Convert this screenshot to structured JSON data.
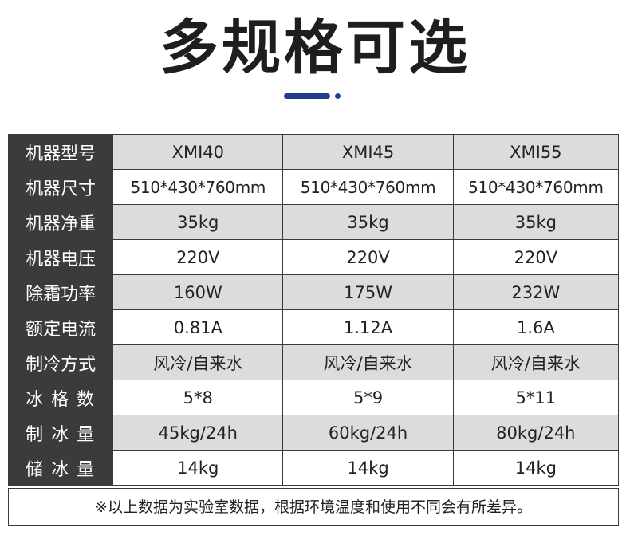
{
  "page": {
    "title": "多规格可选",
    "accent_color": "#1f3f8f"
  },
  "table": {
    "rows": [
      {
        "label": "机器型号",
        "values": [
          "XMI40",
          "XMI45",
          "XMI55"
        ]
      },
      {
        "label": "机器尺寸",
        "values": [
          "510*430*760mm",
          "510*430*760mm",
          "510*430*760mm"
        ]
      },
      {
        "label": "机器净重",
        "values": [
          "35kg",
          "35kg",
          "35kg"
        ]
      },
      {
        "label": "机器电压",
        "values": [
          "220V",
          "220V",
          "220V"
        ]
      },
      {
        "label": "除霜功率",
        "values": [
          "160W",
          "175W",
          "232W"
        ]
      },
      {
        "label": "额定电流",
        "values": [
          "0.81A",
          "1.12A",
          "1.6A"
        ]
      },
      {
        "label": "制冷方式",
        "values": [
          "风冷/自来水",
          "风冷/自来水",
          "风冷/自来水"
        ]
      },
      {
        "label": "冰格数",
        "values": [
          "5*8",
          "5*9",
          "5*11"
        ]
      },
      {
        "label": "制冰量",
        "values": [
          "45kg/24h",
          "60kg/24h",
          "80kg/24h"
        ]
      },
      {
        "label": "储冰量",
        "values": [
          "14kg",
          "14kg",
          "14kg"
        ]
      }
    ],
    "note": "※以上数据为实验室数据，根据环境温度和使用不同会有所差异。"
  }
}
